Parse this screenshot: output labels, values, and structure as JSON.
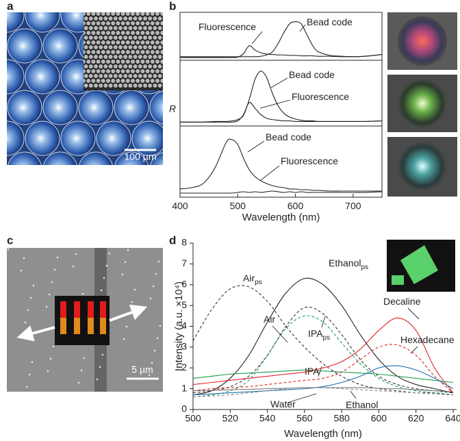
{
  "panel_labels": [
    "a",
    "b",
    "c",
    "d"
  ],
  "scale_bars": [
    "100 µm",
    "5 µm"
  ],
  "chart_data": [
    {
      "type": "line",
      "xlim": [
        400,
        750
      ],
      "ylim": [
        0,
        1
      ],
      "x": [
        400,
        420,
        440,
        460,
        480,
        490,
        500,
        510,
        520,
        530,
        540,
        550,
        560,
        570,
        580,
        590,
        600,
        610,
        620,
        630,
        640,
        660,
        680,
        700,
        720,
        750
      ],
      "series": [
        {
          "name": "Fluorescence",
          "color": "#222",
          "values": [
            0.03,
            0.03,
            0.03,
            0.03,
            0.03,
            0.03,
            0.04,
            0.12,
            0.3,
            0.2,
            0.14,
            0.11,
            0.1,
            0.09,
            0.09,
            0.08,
            0.08,
            0.07,
            0.07,
            0.07,
            0.06,
            0.06,
            0.05,
            0.05,
            0.06,
            0.1
          ]
        },
        {
          "name": "Bead code",
          "color": "#222",
          "values": [
            0.05,
            0.05,
            0.05,
            0.05,
            0.05,
            0.05,
            0.05,
            0.05,
            0.05,
            0.05,
            0.06,
            0.09,
            0.16,
            0.35,
            0.6,
            0.8,
            0.85,
            0.8,
            0.55,
            0.3,
            0.16,
            0.08,
            0.06,
            0.05,
            0.06,
            0.1
          ]
        }
      ]
    },
    {
      "type": "line",
      "xlim": [
        400,
        750
      ],
      "ylim": [
        0,
        1
      ],
      "ylabel": "R",
      "x": [
        400,
        420,
        440,
        460,
        480,
        490,
        500,
        510,
        520,
        530,
        540,
        550,
        560,
        570,
        580,
        590,
        600,
        610,
        620,
        630,
        640,
        660,
        680,
        700,
        720,
        750
      ],
      "series": [
        {
          "name": "Bead code",
          "color": "#222",
          "values": [
            0.04,
            0.04,
            0.04,
            0.05,
            0.05,
            0.06,
            0.08,
            0.15,
            0.4,
            0.72,
            0.85,
            0.75,
            0.5,
            0.3,
            0.18,
            0.12,
            0.09,
            0.07,
            0.06,
            0.06,
            0.05,
            0.05,
            0.05,
            0.05,
            0.05,
            0.06
          ]
        },
        {
          "name": "Fluorescence",
          "color": "#222",
          "values": [
            0.04,
            0.04,
            0.04,
            0.04,
            0.04,
            0.04,
            0.06,
            0.16,
            0.35,
            0.26,
            0.16,
            0.1,
            0.08,
            0.07,
            0.06,
            0.06,
            0.05,
            0.05,
            0.05,
            0.05,
            0.05,
            0.05,
            0.05,
            0.05,
            0.05,
            0.06
          ]
        }
      ]
    },
    {
      "type": "line",
      "xlim": [
        400,
        750
      ],
      "ylim": [
        0,
        1
      ],
      "xlabel": "Wavelength (nm)",
      "xticks": [
        400,
        500,
        600,
        700
      ],
      "x": [
        400,
        420,
        440,
        460,
        480,
        490,
        500,
        510,
        520,
        530,
        540,
        550,
        560,
        570,
        580,
        590,
        600,
        610,
        620,
        630,
        640,
        660,
        680,
        700,
        720,
        750
      ],
      "series": [
        {
          "name": "Bead code",
          "color": "#222",
          "values": [
            0.1,
            0.12,
            0.18,
            0.4,
            0.78,
            0.82,
            0.75,
            0.55,
            0.38,
            0.28,
            0.22,
            0.18,
            0.15,
            0.13,
            0.12,
            0.1,
            0.1,
            0.09,
            0.09,
            0.08,
            0.08,
            0.07,
            0.07,
            0.07,
            0.07,
            0.07
          ]
        },
        {
          "name": "Fluorescence",
          "color": "#222",
          "values": [
            0.04,
            0.04,
            0.04,
            0.04,
            0.04,
            0.04,
            0.05,
            0.06,
            0.05,
            0.06,
            0.05,
            0.06,
            0.07,
            0.06,
            0.05,
            0.06,
            0.05,
            0.06,
            0.05,
            0.05,
            0.05,
            0.05,
            0.05,
            0.05,
            0.05,
            0.06
          ]
        }
      ]
    },
    {
      "type": "line",
      "xlim": [
        500,
        640
      ],
      "ylim": [
        0,
        8
      ],
      "xticks": [
        500,
        520,
        540,
        560,
        580,
        600,
        620,
        640
      ],
      "yticks": [
        0,
        1,
        2,
        3,
        4,
        5,
        6,
        7,
        8
      ],
      "xlabel": "Wavelength (nm)",
      "ylabel": "Intensity (a.u. ×10⁴)",
      "x": [
        500,
        510,
        520,
        530,
        540,
        550,
        560,
        570,
        580,
        590,
        600,
        610,
        620,
        630,
        640
      ],
      "series": [
        {
          "name": "Air",
          "sub": "ps",
          "color": "#333",
          "dash": true,
          "values": [
            3.3,
            4.8,
            5.8,
            5.9,
            5.2,
            4.0,
            3.0,
            2.2,
            1.6,
            1.2,
            1.0,
            0.9,
            0.8,
            0.8,
            0.7
          ]
        },
        {
          "name": "Ethanol",
          "sub": "ps",
          "color": "#222",
          "dash": false,
          "values": [
            0.7,
            0.9,
            1.5,
            2.6,
            4.2,
            5.6,
            6.3,
            6.0,
            5.0,
            3.6,
            2.4,
            1.6,
            1.2,
            1.0,
            0.8
          ]
        },
        {
          "name": "Air",
          "color": "#333",
          "dash": true,
          "values": [
            0.8,
            0.9,
            1.1,
            1.6,
            2.6,
            4.0,
            4.9,
            4.6,
            3.6,
            2.4,
            1.6,
            1.2,
            1.0,
            0.9,
            0.8
          ]
        },
        {
          "name": "IPA",
          "sub": "ps",
          "color": "#1a9a6a",
          "dash": true,
          "values": [
            0.6,
            0.7,
            0.9,
            1.4,
            2.6,
            3.9,
            4.5,
            4.2,
            3.2,
            2.2,
            1.5,
            1.1,
            0.9,
            0.8,
            0.7
          ]
        },
        {
          "name": "IPA",
          "color": "#1a9a4a",
          "dash": false,
          "values": [
            1.5,
            1.6,
            1.7,
            1.75,
            1.8,
            1.85,
            1.9,
            1.85,
            1.8,
            1.75,
            1.7,
            1.6,
            1.5,
            1.4,
            1.3
          ]
        },
        {
          "name": "Decaline",
          "color": "#e02020",
          "dash": false,
          "values": [
            1.2,
            1.3,
            1.4,
            1.5,
            1.6,
            1.7,
            1.8,
            2.0,
            2.3,
            2.9,
            3.8,
            4.4,
            3.8,
            2.0,
            0.8
          ]
        },
        {
          "name": "Hexadecane",
          "color": "#e02020",
          "dash": true,
          "values": [
            0.9,
            1.0,
            1.05,
            1.1,
            1.2,
            1.3,
            1.4,
            1.5,
            1.8,
            2.4,
            3.0,
            3.1,
            2.6,
            1.6,
            0.8
          ]
        },
        {
          "name": null,
          "color": "#1f6fb0",
          "dash": false,
          "values": [
            0.7,
            0.75,
            0.8,
            0.85,
            0.9,
            0.95,
            1.0,
            1.1,
            1.3,
            1.6,
            2.0,
            2.1,
            1.9,
            1.5,
            1.0
          ]
        },
        {
          "name": "Water",
          "color": "#777",
          "dash": false,
          "values": [
            0.9,
            0.92,
            0.95,
            0.97,
            1.0,
            1.02,
            1.05,
            1.05,
            1.05,
            1.05,
            1.02,
            1.0,
            0.95,
            0.9,
            0.85
          ]
        },
        {
          "name": "Ethanol",
          "color": "#888",
          "dash": true,
          "values": [
            0.6,
            0.65,
            0.7,
            0.8,
            0.9,
            1.0,
            1.05,
            1.05,
            1.0,
            0.95,
            0.9,
            0.85,
            0.8,
            0.75,
            0.7
          ]
        }
      ]
    }
  ]
}
